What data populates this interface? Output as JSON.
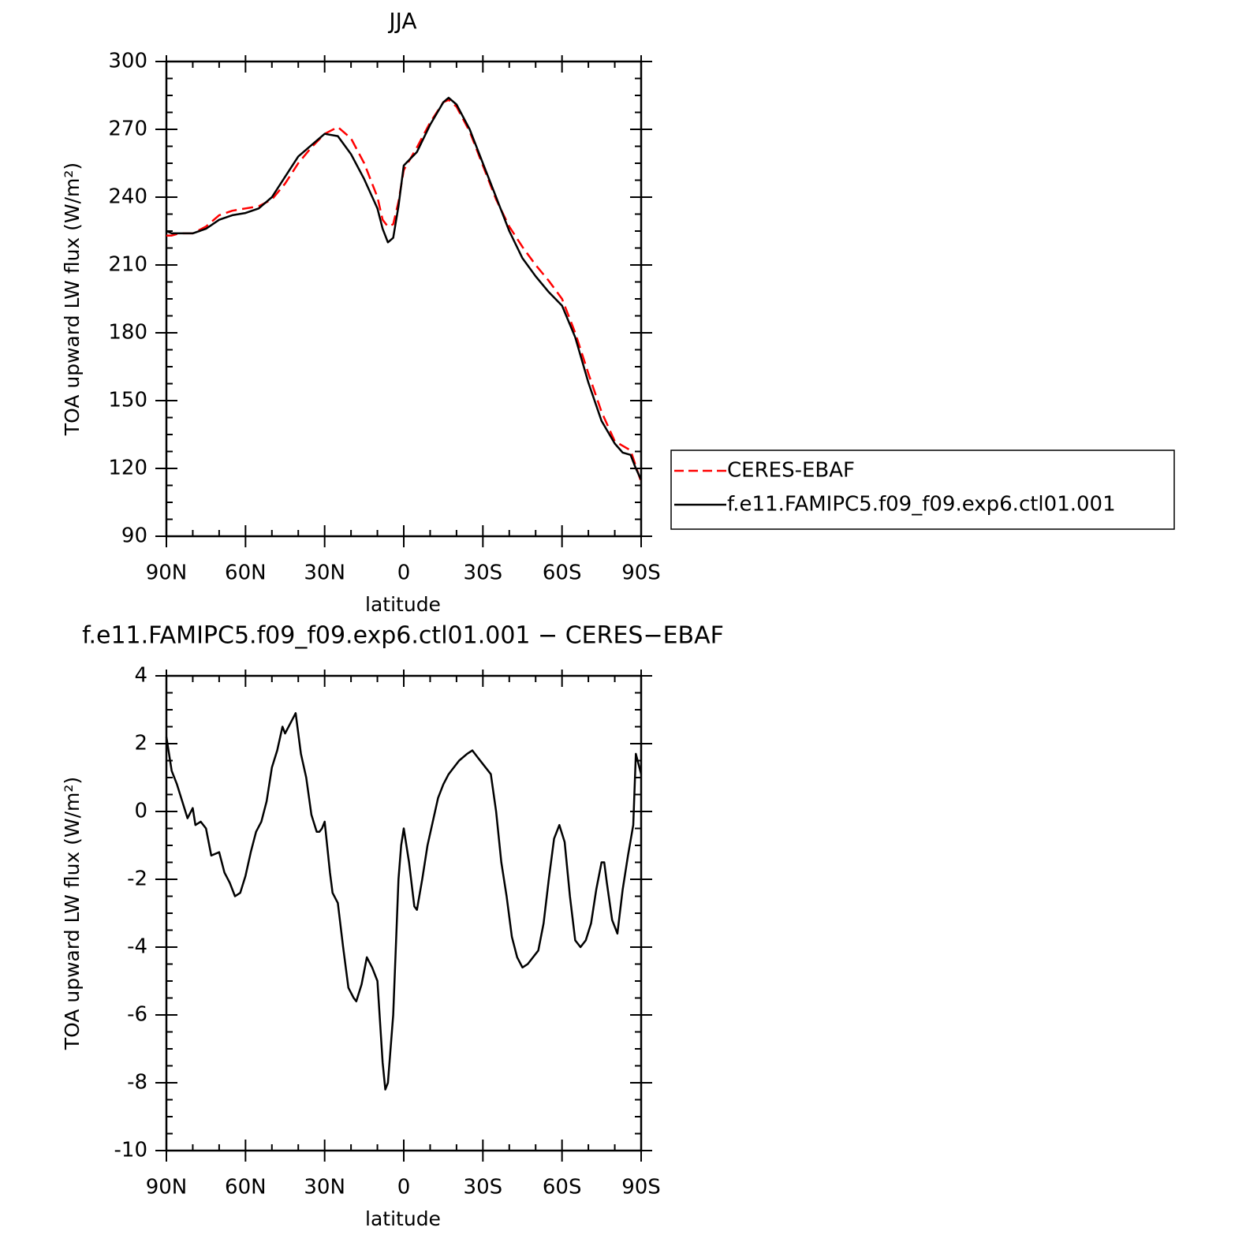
{
  "chart_data": [
    {
      "type": "line",
      "title": "JJA",
      "x_label": "latitude",
      "y_label": "TOA upward LW flux (W/m²)",
      "x": [
        90,
        88,
        85,
        80,
        75,
        70,
        65,
        60,
        55,
        50,
        45,
        40,
        35,
        30,
        25,
        20,
        15,
        10,
        8,
        6,
        4,
        2,
        0,
        -5,
        -10,
        -15,
        -17,
        -20,
        -25,
        -30,
        -35,
        -40,
        -45,
        -50,
        -55,
        -60,
        -65,
        -70,
        -75,
        -80,
        -83,
        -86,
        -88,
        -90
      ],
      "xlim": [
        90,
        -90
      ],
      "xticks": [
        {
          "value": 90,
          "label": "90N"
        },
        {
          "value": 60,
          "label": "60N"
        },
        {
          "value": 30,
          "label": "30N"
        },
        0,
        {
          "value": -30,
          "label": "30S"
        },
        {
          "value": -60,
          "label": "60S"
        },
        {
          "value": -90,
          "label": "90S"
        }
      ],
      "ylim": [
        90,
        300
      ],
      "yticks": [
        90,
        120,
        150,
        180,
        210,
        240,
        270,
        300
      ],
      "legend": "right",
      "series": [
        {
          "name": "CERES-EBAF",
          "color": "#ff0000",
          "dashed": true,
          "values": [
            223,
            223,
            224,
            224,
            227,
            232,
            234,
            235,
            236,
            239,
            246,
            255,
            262,
            268,
            271,
            266,
            255,
            240,
            230,
            227,
            228,
            238,
            252,
            262,
            273,
            282,
            283,
            280,
            269,
            254,
            239,
            227,
            218,
            210,
            203,
            195,
            180,
            162,
            145,
            132,
            130,
            128,
            121,
            114
          ]
        },
        {
          "name": "f.e11.FAMIPC5.f09_f09.exp6.ctl01.001",
          "color": "#000000",
          "values": [
            225,
            224,
            224,
            224,
            226,
            230,
            232,
            233,
            235,
            240,
            249,
            258,
            263,
            268,
            267,
            259,
            248,
            235,
            226,
            220,
            222,
            236,
            254,
            260,
            272,
            282,
            284,
            281,
            270,
            255,
            240,
            225,
            213,
            205,
            198,
            192,
            178,
            158,
            141,
            131,
            127,
            126,
            120,
            115
          ]
        }
      ]
    },
    {
      "type": "line",
      "title": "f.e11.FAMIPC5.f09_f09.exp6.ctl01.001 − CERES−EBAF",
      "x_label": "latitude",
      "y_label": "TOA upward LW flux (W/m²)",
      "x": [
        90,
        88,
        86,
        84,
        82,
        80,
        79,
        77,
        75,
        73,
        70,
        68,
        66,
        64,
        62,
        60,
        58,
        56,
        54,
        52,
        50,
        48,
        46,
        45,
        43,
        41,
        39,
        37,
        35,
        33,
        32,
        31,
        30,
        28,
        27,
        25,
        23,
        21,
        19,
        18,
        16,
        14,
        12,
        10,
        8,
        7,
        6,
        4,
        2,
        1,
        0,
        -2,
        -4,
        -5,
        -7,
        -9,
        -11,
        -13,
        -15,
        -17,
        -19,
        -21,
        -24,
        -26,
        -28,
        -30,
        -33,
        -35,
        -37,
        -39,
        -41,
        -43,
        -45,
        -47,
        -49,
        -51,
        -53,
        -55,
        -57,
        -59,
        -61,
        -63,
        -65,
        -67,
        -69,
        -71,
        -73,
        -75,
        -76,
        -77,
        -79,
        -81,
        -83,
        -85,
        -87,
        -88,
        -90
      ],
      "xlim": [
        90,
        -90
      ],
      "xticks": [
        {
          "value": 90,
          "label": "90N"
        },
        {
          "value": 60,
          "label": "60N"
        },
        {
          "value": 30,
          "label": "30N"
        },
        0,
        {
          "value": -30,
          "label": "30S"
        },
        {
          "value": -60,
          "label": "60S"
        },
        {
          "value": -90,
          "label": "90S"
        }
      ],
      "ylim": [
        -10,
        4
      ],
      "yticks": [
        -10,
        -8,
        -6,
        -4,
        -2,
        0,
        2,
        4
      ],
      "series": [
        {
          "color": "#000000",
          "values": [
            2.2,
            1.2,
            0.8,
            0.3,
            -0.2,
            0.1,
            -0.4,
            -0.3,
            -0.5,
            -1.3,
            -1.2,
            -1.8,
            -2.1,
            -2.5,
            -2.4,
            -1.9,
            -1.2,
            -0.6,
            -0.3,
            0.3,
            1.3,
            1.8,
            2.5,
            2.3,
            2.6,
            2.9,
            1.7,
            1.0,
            -0.1,
            -0.6,
            -0.6,
            -0.5,
            -0.3,
            -1.8,
            -2.4,
            -2.7,
            -4.0,
            -5.2,
            -5.5,
            -5.6,
            -5.1,
            -4.3,
            -4.6,
            -5.0,
            -7.4,
            -8.2,
            -8.0,
            -6.0,
            -2.0,
            -1.0,
            -0.5,
            -1.5,
            -2.8,
            -2.9,
            -2.0,
            -1.0,
            -0.3,
            0.4,
            0.8,
            1.1,
            1.3,
            1.5,
            1.7,
            1.8,
            1.6,
            1.4,
            1.1,
            0.0,
            -1.5,
            -2.5,
            -3.7,
            -4.3,
            -4.6,
            -4.5,
            -4.3,
            -4.1,
            -3.3,
            -2.0,
            -0.8,
            -0.4,
            -0.9,
            -2.5,
            -3.8,
            -4.0,
            -3.8,
            -3.3,
            -2.3,
            -1.5,
            -1.5,
            -2.1,
            -3.2,
            -3.6,
            -2.3,
            -1.3,
            -0.4,
            1.7,
            1.1
          ]
        }
      ]
    }
  ]
}
